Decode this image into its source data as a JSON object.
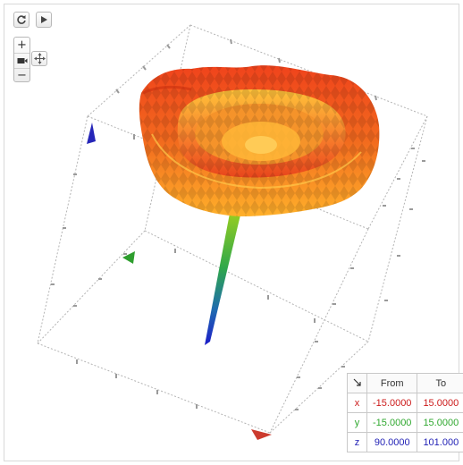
{
  "toolbar": {
    "reset_icon": "refresh-icon",
    "play_icon": "play-icon",
    "zoom_in_label": "+",
    "camera_icon": "camera-icon",
    "zoom_out_label": "−",
    "pan_icon": "pan-arrows-icon"
  },
  "range_table": {
    "corner_icon": "collapse-arrow-icon",
    "header_from": "From",
    "header_to": "To",
    "rows": [
      {
        "axis": "x",
        "from": "-15.0000",
        "to": "15.0000",
        "color": "#cc1a1a"
      },
      {
        "axis": "y",
        "from": "-15.0000",
        "to": "15.0000",
        "color": "#2fa82f"
      },
      {
        "axis": "z",
        "from": "90.0000",
        "to": "101.000",
        "color": "#1f1fb5"
      }
    ]
  },
  "colors": {
    "x_axis": "#cc3b2e",
    "y_axis": "#2e9e2e",
    "z_axis": "#2626b8",
    "surface_top": "#f04e1a",
    "surface_mid": "#ffad24",
    "stem_top": "#7ac61d",
    "stem_bottom": "#2020c8"
  }
}
